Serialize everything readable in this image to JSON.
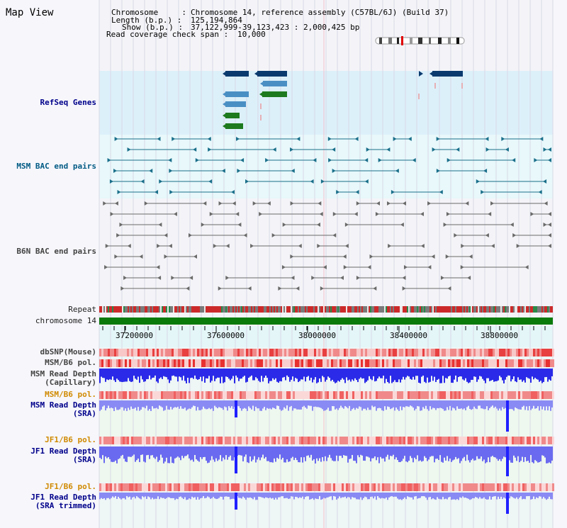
{
  "view": {
    "title": "Map View"
  },
  "header": {
    "chromosome_label": "Chromosome     :",
    "chromosome_value": "Chromosome 14, reference assembly (C57BL/6J) (Build 37)",
    "length_label": "Length (b.p.) :",
    "length_value": "125,194,864",
    "show_label": "Show (b.p.) :",
    "show_value": "37,122,999-39,123,423 : 2,000,425 bp",
    "read_coverage_label": "Read coverage check span :",
    "read_coverage_value": "10,000"
  },
  "tracks": {
    "refseq_genes": "RefSeq Genes",
    "msm_bac": "MSM BAC end pairs",
    "b6n_bac": "B6N BAC end pairs",
    "repeat": "Repeat",
    "chromosome": "chromosome 14",
    "dbsnp": "dbSNP(Mouse)",
    "msm_b6_pol_1": "MSM/B6 pol.",
    "msm_read_depth_cap_1": "MSM Read Depth",
    "msm_read_depth_cap_2": "(Capillary)",
    "msm_b6_pol_2": "MSM/B6 pol.",
    "msm_read_depth_sra_1": "MSM Read Depth",
    "msm_read_depth_sra_2": "(SRA)",
    "jf1_b6_pol_1": "JF1/B6 pol.",
    "jf1_read_depth_1": "JF1 Read Depth",
    "jf1_read_depth_2": "(SRA)",
    "jf1_b6_pol_2": "JF1/B6 pol.",
    "jf1_trim_1": "JF1 Read Depth",
    "jf1_trim_2": "(SRA trimmed)"
  },
  "axis": {
    "ticks": [
      "37200000",
      "37600000",
      "38000000",
      "38400000",
      "38800000"
    ]
  },
  "colors": {
    "refseq_bg": "#dcf0fa",
    "bac_bg": "#e8f8fb",
    "gene_dark": "#0a3a6e",
    "gene_mid": "#4a8fc4",
    "gene_green": "#1e7a1e",
    "msm_feature": "#1a6f8a",
    "b6n_feature": "#6a6a6a",
    "chromosome_bar": "#0a7a0a",
    "read_depth": "#3a3aff"
  }
}
